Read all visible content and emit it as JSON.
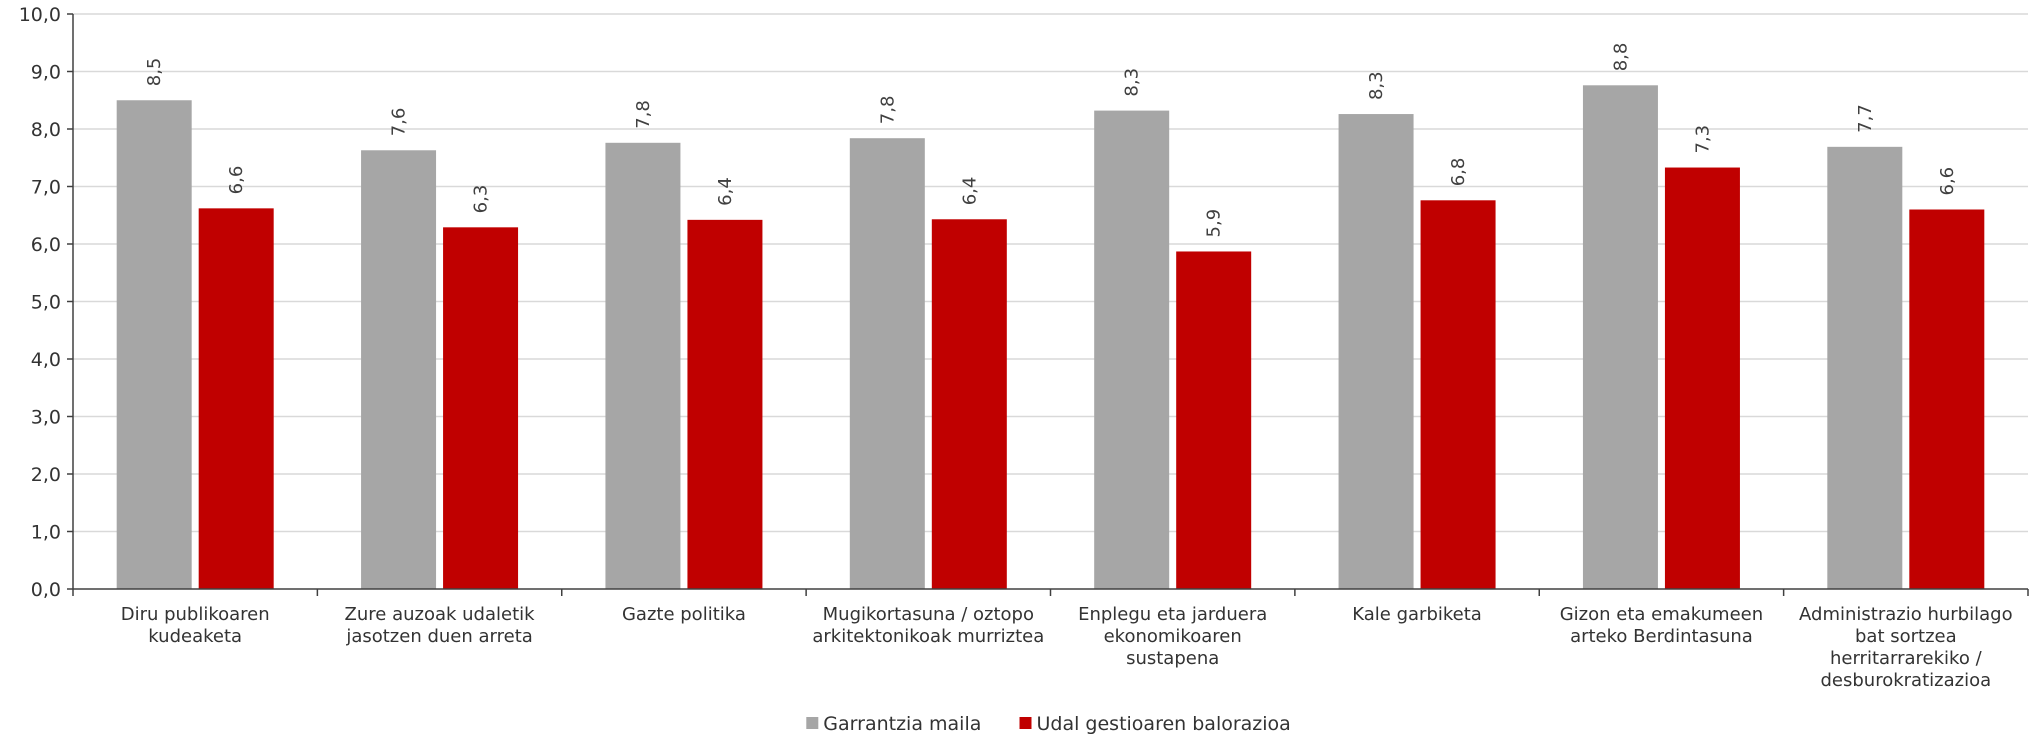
{
  "chart_data": {
    "type": "bar",
    "categories": [
      [
        "Diru publikoaren",
        "kudeaketa"
      ],
      [
        "Zure auzoak udaletik",
        "jasotzen duen arreta"
      ],
      [
        "Gazte politika"
      ],
      [
        "Mugikortasuna / oztopo",
        "arkitektonikoak murriztea"
      ],
      [
        "Enplegu eta jarduera",
        "ekonomikoaren",
        "sustapena"
      ],
      [
        "Kale garbiketa"
      ],
      [
        "Gizon eta emakumeen",
        "arteko Berdintasuna"
      ],
      [
        "Administrazio hurbilago",
        "bat sortzea",
        "herritarrarekiko /",
        "desburokratizazioa"
      ]
    ],
    "series": [
      {
        "name": "Garrantzia maila",
        "color": "#a6a6a6",
        "values": [
          8.5,
          7.63,
          7.76,
          7.84,
          8.32,
          8.26,
          8.76,
          7.69
        ],
        "labels": [
          "8,5",
          "7,6",
          "7,8",
          "7,8",
          "8,3",
          "8,3",
          "8,8",
          "7,7"
        ]
      },
      {
        "name": "Udal gestioaren balorazioa",
        "color": "#c00000",
        "values": [
          6.62,
          6.29,
          6.42,
          6.43,
          5.87,
          6.76,
          7.33,
          6.6
        ],
        "labels": [
          "6,6",
          "6,3",
          "6,4",
          "6,4",
          "5,9",
          "6,8",
          "7,3",
          "6,6"
        ]
      }
    ],
    "ylim": [
      0,
      10
    ],
    "yticks": [
      "0,0",
      "1,0",
      "2,0",
      "3,0",
      "4,0",
      "5,0",
      "6,0",
      "7,0",
      "8,0",
      "9,0",
      "10,0"
    ],
    "grid": true,
    "legend_position": "bottom-center",
    "title": "",
    "xlabel": "",
    "ylabel": ""
  }
}
